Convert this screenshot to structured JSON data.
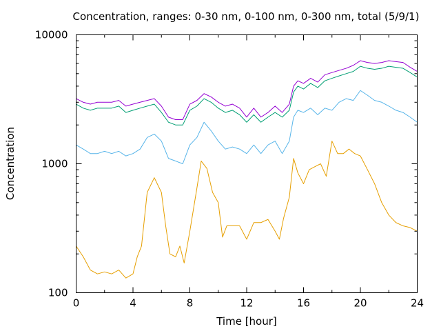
{
  "chart_data": {
    "type": "line",
    "title": "Concentration, ranges: 0-30 nm, 0-100 nm, 0-300 nm, total (5/9/1)",
    "xlabel": "Time [hour]",
    "ylabel": "Concentration",
    "xlim": [
      0,
      24
    ],
    "ylim": [
      100,
      10000
    ],
    "yscale": "log",
    "grid": false,
    "legend": "none",
    "x_ticks": [
      {
        "value": 0,
        "label": "0"
      },
      {
        "value": 4,
        "label": "4"
      },
      {
        "value": 8,
        "label": "8"
      },
      {
        "value": 12,
        "label": "12"
      },
      {
        "value": 16,
        "label": "16"
      },
      {
        "value": 20,
        "label": "20"
      },
      {
        "value": 24,
        "label": "24"
      }
    ],
    "y_ticks": [
      {
        "value": 100,
        "label": "100"
      },
      {
        "value": 1000,
        "label": "1000"
      },
      {
        "value": 10000,
        "label": "10000"
      }
    ],
    "series": [
      {
        "color": "#e69f00",
        "x": [
          0,
          0.5,
          1,
          1.5,
          2,
          2.5,
          3,
          3.5,
          4,
          4.3,
          4.6,
          5,
          5.5,
          6,
          6.3,
          6.6,
          7,
          7.3,
          7.6,
          8,
          8.5,
          8.8,
          9.2,
          9.6,
          10,
          10.3,
          10.6,
          11,
          11.5,
          12,
          12.5,
          13,
          13.5,
          14,
          14.3,
          14.6,
          15,
          15.3,
          15.6,
          16,
          16.4,
          16.8,
          17.2,
          17.6,
          18,
          18.4,
          18.8,
          19.2,
          19.6,
          20,
          20.5,
          21,
          21.5,
          22,
          22.5,
          23,
          23.5,
          24
        ],
        "values": [
          230,
          190,
          150,
          140,
          145,
          140,
          150,
          130,
          140,
          190,
          230,
          600,
          780,
          600,
          330,
          200,
          190,
          230,
          170,
          300,
          650,
          1050,
          920,
          600,
          500,
          270,
          330,
          330,
          330,
          260,
          350,
          350,
          370,
          300,
          260,
          380,
          550,
          1100,
          850,
          700,
          900,
          950,
          1000,
          800,
          1500,
          1200,
          1200,
          1300,
          1200,
          1150,
          900,
          700,
          500,
          400,
          350,
          330,
          320,
          300
        ]
      },
      {
        "color": "#56b4e9",
        "x": [
          0,
          0.5,
          1,
          1.5,
          2,
          2.5,
          3,
          3.5,
          4,
          4.5,
          5,
          5.5,
          6,
          6.5,
          7,
          7.5,
          8,
          8.5,
          9,
          9.5,
          10,
          10.5,
          11,
          11.5,
          12,
          12.5,
          13,
          13.5,
          14,
          14.5,
          15,
          15.3,
          15.6,
          16,
          16.5,
          17,
          17.5,
          18,
          18.5,
          19,
          19.5,
          20,
          20.5,
          21,
          21.5,
          22,
          22.5,
          23,
          23.5,
          24
        ],
        "values": [
          1400,
          1300,
          1200,
          1200,
          1250,
          1200,
          1250,
          1150,
          1200,
          1300,
          1600,
          1700,
          1500,
          1100,
          1050,
          1000,
          1400,
          1600,
          2100,
          1800,
          1500,
          1300,
          1350,
          1300,
          1200,
          1400,
          1200,
          1400,
          1500,
          1200,
          1500,
          2300,
          2600,
          2500,
          2700,
          2400,
          2700,
          2600,
          3000,
          3200,
          3100,
          3700,
          3400,
          3100,
          3000,
          2800,
          2600,
          2500,
          2300,
          2100
        ]
      },
      {
        "color": "#009e73",
        "x": [
          0,
          0.5,
          1,
          1.5,
          2,
          2.5,
          3,
          3.5,
          4,
          4.5,
          5,
          5.5,
          6,
          6.5,
          7,
          7.5,
          8,
          8.5,
          9,
          9.5,
          10,
          10.5,
          11,
          11.5,
          12,
          12.5,
          13,
          13.5,
          14,
          14.5,
          15,
          15.3,
          15.6,
          16,
          16.5,
          17,
          17.5,
          18,
          18.5,
          19,
          19.5,
          20,
          20.5,
          21,
          21.5,
          22,
          22.5,
          23,
          23.5,
          24
        ],
        "values": [
          2900,
          2700,
          2600,
          2700,
          2700,
          2700,
          2800,
          2500,
          2600,
          2700,
          2800,
          2900,
          2500,
          2100,
          2000,
          2000,
          2600,
          2800,
          3200,
          3000,
          2700,
          2500,
          2600,
          2400,
          2100,
          2400,
          2100,
          2300,
          2500,
          2300,
          2600,
          3600,
          4000,
          3800,
          4200,
          3900,
          4400,
          4600,
          4800,
          5000,
          5200,
          5700,
          5500,
          5400,
          5500,
          5700,
          5600,
          5500,
          5100,
          4700
        ]
      },
      {
        "color": "#9400d3",
        "x": [
          0,
          0.5,
          1,
          1.5,
          2,
          2.5,
          3,
          3.5,
          4,
          4.5,
          5,
          5.5,
          6,
          6.5,
          7,
          7.5,
          8,
          8.5,
          9,
          9.5,
          10,
          10.5,
          11,
          11.5,
          12,
          12.5,
          13,
          13.5,
          14,
          14.5,
          15,
          15.3,
          15.6,
          16,
          16.5,
          17,
          17.5,
          18,
          18.5,
          19,
          19.5,
          20,
          20.5,
          21,
          21.5,
          22,
          22.5,
          23,
          23.5,
          24
        ],
        "values": [
          3200,
          3000,
          2900,
          3000,
          3000,
          3000,
          3100,
          2800,
          2900,
          3000,
          3100,
          3200,
          2800,
          2300,
          2200,
          2200,
          2900,
          3100,
          3500,
          3300,
          3000,
          2800,
          2900,
          2700,
          2300,
          2700,
          2300,
          2500,
          2800,
          2500,
          2900,
          4000,
          4400,
          4200,
          4600,
          4300,
          4900,
          5100,
          5300,
          5500,
          5800,
          6300,
          6100,
          6000,
          6100,
          6300,
          6200,
          6100,
          5600,
          5200
        ]
      }
    ]
  }
}
